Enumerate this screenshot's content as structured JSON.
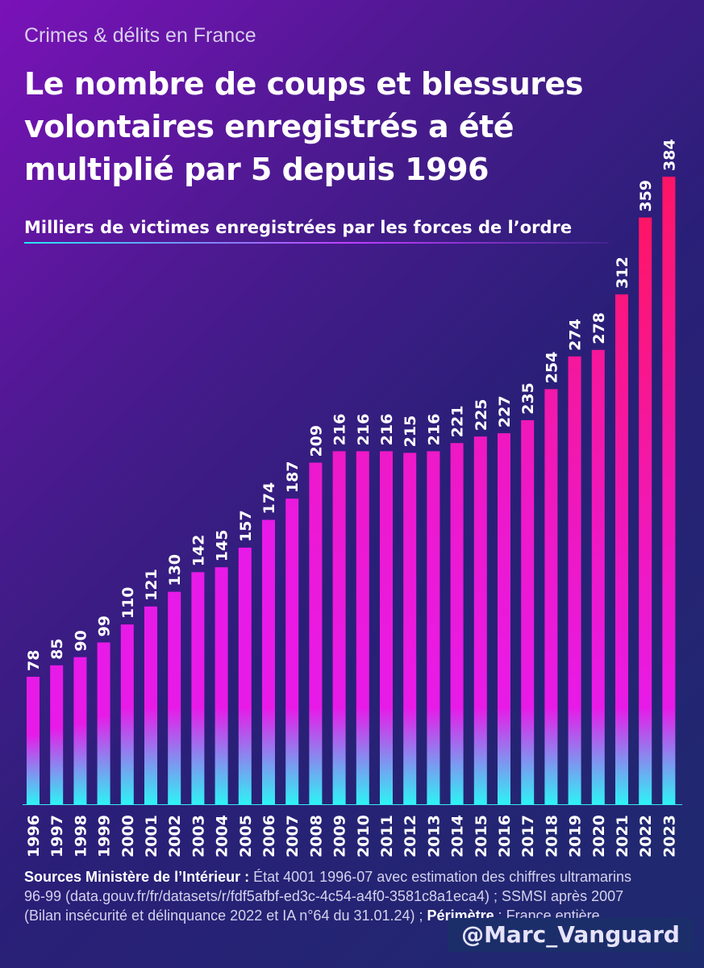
{
  "header": {
    "kicker": "Crimes & délits en France",
    "title_lines": [
      "Le nombre de coups et blessures",
      "volontaires enregistrés a été",
      "multiplié par 5 depuis 1996"
    ],
    "subtitle": "Milliers de victimes enregistrées par les forces de l’ordre"
  },
  "chart_data": {
    "type": "bar",
    "title": "Le nombre de coups et blessures volontaires enregistrés a été multiplié par 5 depuis 1996",
    "subtitle": "Milliers de victimes enregistrées par les forces de l’ordre",
    "categories": [
      "1996",
      "1997",
      "1998",
      "1999",
      "2000",
      "2001",
      "2002",
      "2003",
      "2004",
      "2005",
      "2006",
      "2007",
      "2008",
      "2009",
      "2010",
      "2011",
      "2012",
      "2013",
      "2014",
      "2015",
      "2016",
      "2017",
      "2018",
      "2019",
      "2020",
      "2021",
      "2022",
      "2023"
    ],
    "values": [
      78,
      85,
      90,
      99,
      110,
      121,
      130,
      142,
      145,
      157,
      174,
      187,
      209,
      216,
      216,
      216,
      215,
      216,
      221,
      225,
      227,
      235,
      254,
      274,
      278,
      312,
      359,
      384
    ],
    "ylim": [
      0,
      384
    ],
    "grid": false,
    "legend": "none",
    "colors": {
      "bottom": "#2ef3f5",
      "middle": "#e81ae8",
      "top_high": "#ff1565"
    }
  },
  "source": {
    "label1": "Sources Ministère de l’Intérieur :",
    "text1": " État 4001 1996-07 avec estimation des chiffres ultramarins 96-99 (data.gouv.fr/fr/datasets/r/fdf5afbf-ed3c-4c54-a4f0-3581c8a1eca4) ; SSMSI après 2007 (Bilan insécurité et délinquance 2022 et IA n°64 du 31.01.24) ; ",
    "label2": "Périmètre",
    "text2": " : France entière"
  },
  "handle": "@Marc_Vanguard"
}
